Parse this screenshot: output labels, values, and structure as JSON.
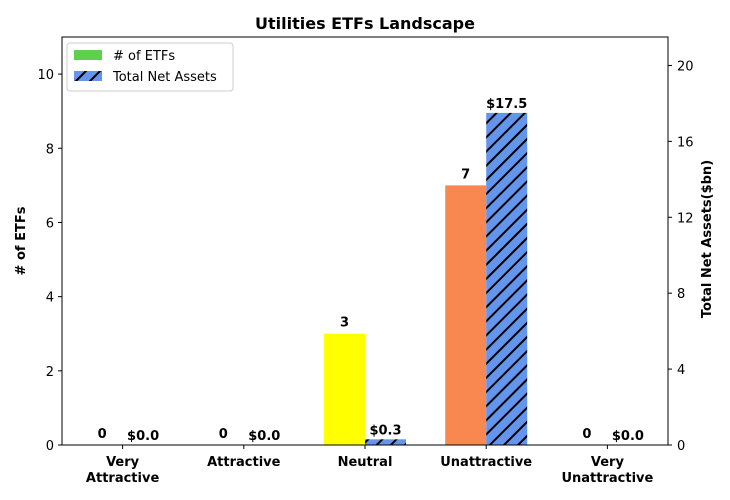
{
  "chart_data": {
    "type": "bar",
    "title": "Utilities ETFs Landscape",
    "categories": [
      [
        "Very",
        "Attractive"
      ],
      [
        "Attractive"
      ],
      [
        "Neutral"
      ],
      [
        "Unattractive"
      ],
      [
        "Very",
        "Unattractive"
      ]
    ],
    "series": [
      {
        "name": "# of ETFs",
        "axis": "left",
        "values": [
          0,
          0,
          3,
          7,
          0
        ],
        "labels": [
          "0",
          "0",
          "3",
          "7",
          "0"
        ],
        "bar_colors": [
          "#2ca02c",
          "#5fcf50",
          "#ffff00",
          "#f98850",
          "#ff0000"
        ],
        "legend_color": "#5fcf50"
      },
      {
        "name": "Total Net Assets",
        "axis": "right",
        "values": [
          0.0,
          0.0,
          0.3,
          17.5,
          0.0
        ],
        "labels": [
          "$0.0",
          "$0.0",
          "$0.3",
          "$17.5",
          "$0.0"
        ],
        "color": "#6495ed",
        "hatch_color": "#000000"
      }
    ],
    "ylabel_left": "# of ETFs",
    "ylabel_right": "Total Net Assets($bn)",
    "ylim_left": [
      0,
      11
    ],
    "ylim_right": [
      0,
      21.5
    ],
    "yticks_left": [
      0,
      2,
      4,
      6,
      8,
      10
    ],
    "yticks_right": [
      0,
      4,
      8,
      12,
      16,
      20
    ],
    "legend_position": "top-left",
    "grid": false
  }
}
